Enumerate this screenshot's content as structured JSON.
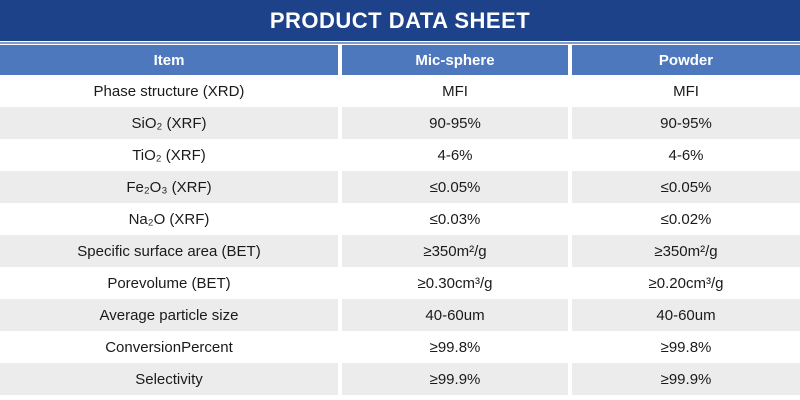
{
  "title": "PRODUCT DATA SHEET",
  "colors": {
    "title_bar": "#1e4289",
    "header_row": "#4d78bd",
    "row_alternate": "#ececec",
    "divider_line": "#7e9cc9",
    "body_text": "#1a1a1a"
  },
  "table": {
    "columns": [
      "Item",
      "Mic-sphere",
      "Powder"
    ],
    "rows": [
      {
        "item": "Phase structure (XRD)",
        "mic_sphere": "MFI",
        "powder": "MFI"
      },
      {
        "item": "SiO₂ (XRF)",
        "mic_sphere": "90-95%",
        "powder": "90-95%"
      },
      {
        "item": "TiO₂ (XRF)",
        "mic_sphere": "4-6%",
        "powder": "4-6%"
      },
      {
        "item": "Fe₂O₃ (XRF)",
        "mic_sphere": "≤0.05%",
        "powder": "≤0.05%"
      },
      {
        "item": "Na₂O (XRF)",
        "mic_sphere": "≤0.03%",
        "powder": "≤0.02%"
      },
      {
        "item": "Specific surface area (BET)",
        "mic_sphere": "≥350m²/g",
        "powder": "≥350m²/g"
      },
      {
        "item": "Porevolume (BET)",
        "mic_sphere": "≥0.30cm³/g",
        "powder": "≥0.20cm³/g"
      },
      {
        "item": "Average particle size",
        "mic_sphere": "40-60um",
        "powder": "40-60um"
      },
      {
        "item": "ConversionPercent",
        "mic_sphere": "≥99.8%",
        "powder": "≥99.8%"
      },
      {
        "item": "Selectivity",
        "mic_sphere": "≥99.9%",
        "powder": "≥99.9%"
      }
    ]
  }
}
